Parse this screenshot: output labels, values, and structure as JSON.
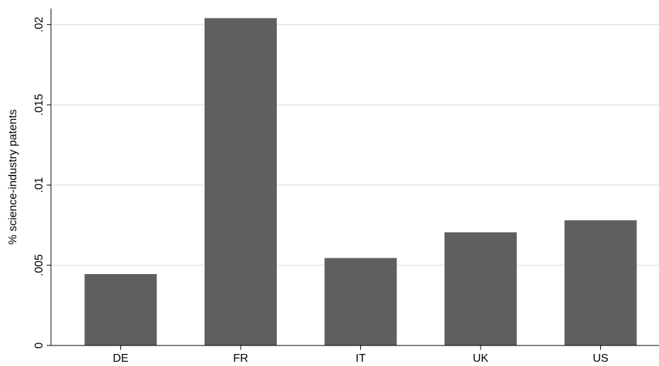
{
  "chart_data": {
    "type": "bar",
    "categories": [
      "DE",
      "FR",
      "IT",
      "UK",
      "US"
    ],
    "values": [
      0.00445,
      0.0204,
      0.00545,
      0.00705,
      0.0078
    ],
    "ylabel": "% science-industry patents",
    "xlabel": "",
    "ylim": [
      0,
      0.021
    ],
    "yticks": [
      0,
      0.005,
      0.01,
      0.015,
      0.02
    ],
    "ytick_labels": [
      "0",
      ".005",
      ".01",
      ".015",
      ".02"
    ],
    "grid": true,
    "bar_color": "#5f5f5f"
  }
}
